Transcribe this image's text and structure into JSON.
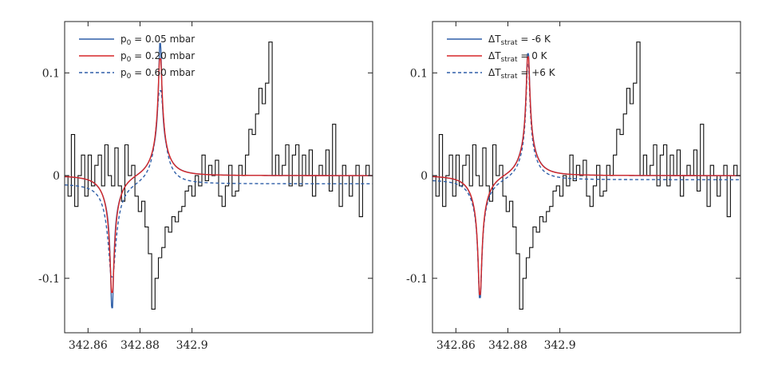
{
  "chart_data": [
    {
      "type": "line",
      "xlim": [
        342.851,
        342.9695
      ],
      "ylim": [
        -0.153,
        0.15
      ],
      "xticks": [
        {
          "value": 342.86,
          "label": "342.86"
        },
        {
          "value": 342.88,
          "label": "342.88"
        },
        {
          "value": 342.9,
          "label": "342.9"
        }
      ],
      "yticks": [
        {
          "value": -0.1,
          "label": "-0.1"
        },
        {
          "value": 0,
          "label": "0"
        },
        {
          "value": 0.1,
          "label": "0.1"
        }
      ],
      "legend_position": "top-left",
      "series": [
        {
          "legend": {
            "sym": "p",
            "sub": "0",
            "rest": " = 0.05 mbar"
          },
          "color": "#2f5fa8",
          "dash": "solid",
          "model": {
            "center": 342.8785,
            "half_sep": 0.00925,
            "width": 0.00072,
            "tail": 0.0006,
            "amp": 0.13,
            "offset": 0.0
          }
        },
        {
          "legend": {
            "sym": "p",
            "sub": "0",
            "rest": " = 0.20 mbar"
          },
          "color": "#d62728",
          "dash": "solid",
          "model": {
            "center": 342.8785,
            "half_sep": 0.00925,
            "width": 0.00095,
            "tail": 0.0006,
            "amp": 0.115,
            "offset": 0.0
          }
        },
        {
          "legend": {
            "sym": "p",
            "sub": "0",
            "rest": " = 0.60 mbar"
          },
          "color": "#2f5fa8",
          "dash": "dashed",
          "model": {
            "center": 342.8785,
            "half_sep": 0.00925,
            "width": 0.0016,
            "tail": 0.0006,
            "amp": 0.092,
            "offset": -0.004
          }
        }
      ],
      "observed": {
        "x_start": 342.851,
        "x_end": 342.9695,
        "values": [
          0.0,
          -0.02,
          0.04,
          -0.03,
          0.0,
          0.02,
          -0.02,
          0.02,
          -0.01,
          0.01,
          0.02,
          -0.01,
          0.03,
          0.0,
          -0.01,
          0.027,
          -0.01,
          -0.025,
          0.03,
          0.0,
          0.01,
          -0.02,
          -0.035,
          -0.025,
          -0.05,
          -0.076,
          -0.13,
          -0.1,
          -0.08,
          -0.07,
          -0.05,
          -0.055,
          -0.04,
          -0.045,
          -0.035,
          -0.03,
          -0.015,
          -0.01,
          -0.02,
          0.0,
          -0.01,
          0.02,
          -0.005,
          0.01,
          0.0,
          0.015,
          -0.02,
          -0.03,
          -0.01,
          0.01,
          -0.02,
          -0.015,
          0.01,
          0.0,
          0.02,
          0.045,
          0.04,
          0.06,
          0.085,
          0.07,
          0.09,
          0.13,
          0.0,
          0.02,
          0.0,
          0.01,
          0.03,
          -0.01,
          0.02,
          0.03,
          -0.01,
          0.02,
          0.0,
          0.025,
          -0.02,
          0.0,
          0.01,
          0.0,
          0.025,
          -0.015,
          0.05,
          0.0,
          -0.03,
          0.01,
          0.0,
          -0.02,
          0.0,
          0.01,
          -0.04,
          0.0,
          0.01,
          0.0
        ]
      }
    },
    {
      "type": "line",
      "xlim": [
        342.851,
        342.9695
      ],
      "ylim": [
        -0.153,
        0.15
      ],
      "xticks": [
        {
          "value": 342.86,
          "label": "342.86"
        },
        {
          "value": 342.88,
          "label": "342.88"
        },
        {
          "value": 342.9,
          "label": "342.9"
        }
      ],
      "yticks": [
        {
          "value": -0.1,
          "label": "-0.1"
        },
        {
          "value": 0,
          "label": "0"
        },
        {
          "value": 0.1,
          "label": "0.1"
        }
      ],
      "legend_position": "top-left",
      "series": [
        {
          "legend": {
            "sym": "ΔT",
            "sub": "strat",
            "rest": " = -6 K"
          },
          "color": "#2f5fa8",
          "dash": "solid",
          "model": {
            "center": 342.8785,
            "half_sep": 0.00925,
            "width": 0.00085,
            "tail": 0.0006,
            "amp": 0.12,
            "offset": 0.0
          }
        },
        {
          "legend": {
            "sym": "ΔT",
            "sub": "strat",
            "rest": " = 0 K"
          },
          "color": "#d62728",
          "dash": "solid",
          "model": {
            "center": 342.8785,
            "half_sep": 0.00925,
            "width": 0.00085,
            "tail": 0.0006,
            "amp": 0.117,
            "offset": 0.0
          }
        },
        {
          "legend": {
            "sym": "ΔT",
            "sub": "strat",
            "rest": " = +6 K"
          },
          "color": "#2f5fa8",
          "dash": "dashed",
          "model": {
            "center": 342.8785,
            "half_sep": 0.00925,
            "width": 0.00085,
            "tail": 0.0006,
            "amp": 0.114,
            "offset": -0.002
          }
        }
      ],
      "observed": {
        "x_start": 342.851,
        "x_end": 342.9695,
        "values": [
          0.0,
          -0.02,
          0.04,
          -0.03,
          0.0,
          0.02,
          -0.02,
          0.02,
          -0.01,
          0.01,
          0.02,
          -0.01,
          0.03,
          0.0,
          -0.01,
          0.027,
          -0.01,
          -0.025,
          0.03,
          0.0,
          0.01,
          -0.02,
          -0.035,
          -0.025,
          -0.05,
          -0.076,
          -0.13,
          -0.1,
          -0.08,
          -0.07,
          -0.05,
          -0.055,
          -0.04,
          -0.045,
          -0.035,
          -0.03,
          -0.015,
          -0.01,
          -0.02,
          0.0,
          -0.01,
          0.02,
          -0.005,
          0.01,
          0.0,
          0.015,
          -0.02,
          -0.03,
          -0.01,
          0.01,
          -0.02,
          -0.015,
          0.01,
          0.0,
          0.02,
          0.045,
          0.04,
          0.06,
          0.085,
          0.07,
          0.09,
          0.13,
          0.0,
          0.02,
          0.0,
          0.01,
          0.03,
          -0.01,
          0.02,
          0.03,
          -0.01,
          0.02,
          0.0,
          0.025,
          -0.02,
          0.0,
          0.01,
          0.0,
          0.025,
          -0.015,
          0.05,
          0.0,
          -0.03,
          0.01,
          0.0,
          -0.02,
          0.0,
          0.01,
          -0.04,
          0.0,
          0.01,
          0.0
        ]
      }
    }
  ]
}
